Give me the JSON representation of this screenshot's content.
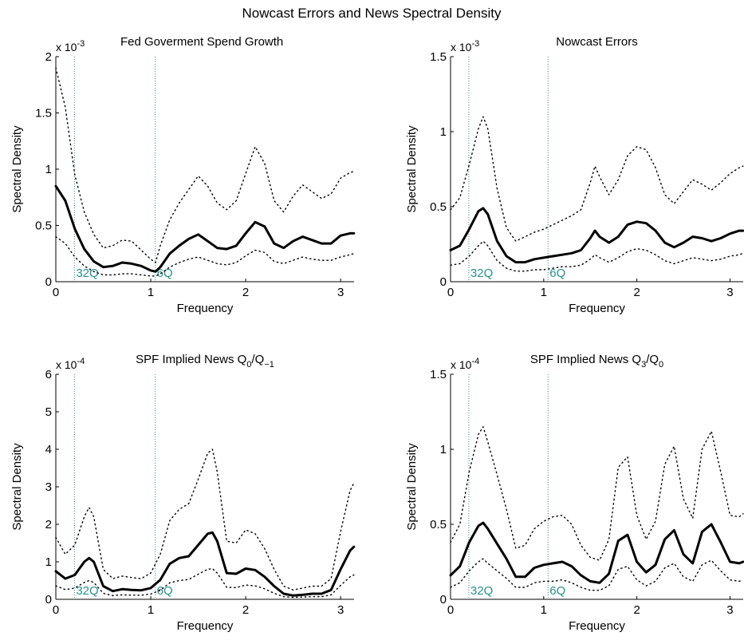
{
  "figure_title": "Nowcast Errors and News Spectral Density",
  "colors": {
    "band_label": "#2a8f8f",
    "guide_line": "#2a8f8f",
    "line": "#000000"
  },
  "chart_data": [
    {
      "type": "line",
      "title": "Fed Goverment Spend Growth",
      "xlabel": "Frequency",
      "ylabel": "Spectral Density",
      "scale_label": "x 10",
      "scale_exp": "-3",
      "xlim": [
        0,
        3.1416
      ],
      "ylim": [
        0,
        2
      ],
      "xticks": [
        0,
        1,
        2,
        3
      ],
      "xtick_labels": [
        "0",
        "1",
        "2",
        "3"
      ],
      "yticks": [
        0,
        0.5,
        1,
        1.5,
        2
      ],
      "ytick_labels": [
        "0",
        "0.5",
        "1",
        "1.5",
        "2"
      ],
      "band_lines": [
        0.196,
        1.047
      ],
      "band_labels": [
        "32Q",
        "6Q"
      ],
      "x": [
        0,
        0.1,
        0.2,
        0.3,
        0.4,
        0.5,
        0.6,
        0.7,
        0.8,
        0.9,
        1.0,
        1.05,
        1.1,
        1.2,
        1.3,
        1.4,
        1.5,
        1.6,
        1.7,
        1.8,
        1.9,
        2.0,
        2.1,
        2.2,
        2.3,
        2.4,
        2.5,
        2.6,
        2.7,
        2.8,
        2.9,
        3.0,
        3.1,
        3.14
      ],
      "series": [
        {
          "role": "estimate",
          "values": [
            0.85,
            0.72,
            0.47,
            0.29,
            0.18,
            0.13,
            0.14,
            0.17,
            0.16,
            0.14,
            0.1,
            0.09,
            0.13,
            0.25,
            0.32,
            0.38,
            0.42,
            0.36,
            0.3,
            0.29,
            0.32,
            0.43,
            0.53,
            0.49,
            0.34,
            0.3,
            0.36,
            0.4,
            0.37,
            0.34,
            0.34,
            0.41,
            0.43,
            0.43
          ]
        },
        {
          "role": "upper",
          "values": [
            1.9,
            1.55,
            0.95,
            0.62,
            0.42,
            0.3,
            0.32,
            0.37,
            0.36,
            0.28,
            0.2,
            0.17,
            0.32,
            0.55,
            0.7,
            0.82,
            0.94,
            0.85,
            0.7,
            0.64,
            0.72,
            0.96,
            1.2,
            1.05,
            0.72,
            0.62,
            0.76,
            0.86,
            0.8,
            0.74,
            0.78,
            0.92,
            0.97,
            0.98
          ]
        },
        {
          "role": "lower",
          "values": [
            0.4,
            0.34,
            0.22,
            0.14,
            0.09,
            0.06,
            0.06,
            0.07,
            0.07,
            0.06,
            0.05,
            0.05,
            0.07,
            0.13,
            0.17,
            0.2,
            0.22,
            0.19,
            0.16,
            0.15,
            0.17,
            0.23,
            0.28,
            0.26,
            0.18,
            0.16,
            0.19,
            0.22,
            0.2,
            0.19,
            0.19,
            0.22,
            0.24,
            0.25
          ]
        }
      ]
    },
    {
      "type": "line",
      "title": "Nowcast Errors",
      "xlabel": "Frequency",
      "ylabel": "Spectral Density",
      "scale_label": "x 10",
      "scale_exp": "-3",
      "xlim": [
        0,
        3.1416
      ],
      "ylim": [
        0,
        1.5
      ],
      "xticks": [
        0,
        1,
        2,
        3
      ],
      "xtick_labels": [
        "0",
        "1",
        "2",
        "3"
      ],
      "yticks": [
        0,
        0.5,
        1,
        1.5
      ],
      "ytick_labels": [
        "0",
        "0.5",
        "1",
        "1.5"
      ],
      "band_lines": [
        0.196,
        1.047
      ],
      "band_labels": [
        "32Q",
        "6Q"
      ],
      "x": [
        0,
        0.1,
        0.2,
        0.3,
        0.35,
        0.4,
        0.5,
        0.6,
        0.7,
        0.8,
        0.9,
        1.0,
        1.1,
        1.2,
        1.3,
        1.4,
        1.5,
        1.55,
        1.6,
        1.7,
        1.8,
        1.9,
        2.0,
        2.1,
        2.2,
        2.3,
        2.4,
        2.5,
        2.6,
        2.7,
        2.8,
        2.9,
        3.0,
        3.1,
        3.14
      ],
      "series": [
        {
          "role": "estimate",
          "values": [
            0.21,
            0.24,
            0.35,
            0.47,
            0.49,
            0.45,
            0.27,
            0.17,
            0.13,
            0.13,
            0.15,
            0.16,
            0.17,
            0.18,
            0.19,
            0.21,
            0.29,
            0.34,
            0.3,
            0.26,
            0.3,
            0.38,
            0.4,
            0.39,
            0.34,
            0.26,
            0.23,
            0.26,
            0.3,
            0.29,
            0.27,
            0.29,
            0.32,
            0.34,
            0.34
          ]
        },
        {
          "role": "upper",
          "values": [
            0.48,
            0.56,
            0.78,
            1.02,
            1.1,
            1.02,
            0.62,
            0.36,
            0.27,
            0.3,
            0.33,
            0.35,
            0.38,
            0.41,
            0.44,
            0.48,
            0.66,
            0.77,
            0.7,
            0.58,
            0.68,
            0.84,
            0.9,
            0.88,
            0.76,
            0.58,
            0.52,
            0.6,
            0.68,
            0.65,
            0.61,
            0.66,
            0.72,
            0.76,
            0.77
          ]
        },
        {
          "role": "lower",
          "values": [
            0.11,
            0.12,
            0.17,
            0.24,
            0.27,
            0.24,
            0.14,
            0.09,
            0.07,
            0.07,
            0.08,
            0.08,
            0.09,
            0.1,
            0.1,
            0.11,
            0.15,
            0.18,
            0.16,
            0.13,
            0.16,
            0.2,
            0.22,
            0.21,
            0.18,
            0.14,
            0.12,
            0.14,
            0.16,
            0.15,
            0.14,
            0.15,
            0.17,
            0.18,
            0.19
          ]
        }
      ]
    },
    {
      "type": "line",
      "title_main": "SPF Implied News Q",
      "title_sub1": "0",
      "title_mid": "/Q",
      "title_sub2": "−1",
      "xlabel": "Frequency",
      "ylabel": "Spectral Density",
      "scale_label": "x 10",
      "scale_exp": "-4",
      "xlim": [
        0,
        3.1416
      ],
      "ylim": [
        0,
        6
      ],
      "xticks": [
        0,
        1,
        2,
        3
      ],
      "xtick_labels": [
        "0",
        "1",
        "2",
        "3"
      ],
      "yticks": [
        0,
        1,
        2,
        3,
        4,
        5,
        6
      ],
      "ytick_labels": [
        "0",
        "1",
        "2",
        "3",
        "4",
        "5",
        "6"
      ],
      "band_lines": [
        0.196,
        1.047
      ],
      "band_labels": [
        "32Q",
        "6Q"
      ],
      "x": [
        0,
        0.1,
        0.2,
        0.3,
        0.35,
        0.4,
        0.5,
        0.6,
        0.7,
        0.8,
        0.9,
        1.0,
        1.1,
        1.2,
        1.3,
        1.4,
        1.5,
        1.6,
        1.65,
        1.7,
        1.8,
        1.9,
        2.0,
        2.1,
        2.2,
        2.3,
        2.4,
        2.5,
        2.6,
        2.7,
        2.8,
        2.9,
        3.0,
        3.1,
        3.14
      ],
      "series": [
        {
          "role": "estimate",
          "values": [
            0.75,
            0.55,
            0.65,
            1.0,
            1.1,
            1.0,
            0.35,
            0.22,
            0.27,
            0.25,
            0.24,
            0.3,
            0.52,
            0.95,
            1.1,
            1.15,
            1.45,
            1.75,
            1.78,
            1.55,
            0.7,
            0.68,
            0.82,
            0.78,
            0.6,
            0.35,
            0.15,
            0.1,
            0.12,
            0.15,
            0.15,
            0.25,
            0.8,
            1.3,
            1.4
          ]
        },
        {
          "role": "upper",
          "values": [
            1.65,
            1.2,
            1.45,
            2.2,
            2.45,
            2.2,
            0.8,
            0.55,
            0.62,
            0.58,
            0.55,
            0.7,
            1.2,
            2.1,
            2.4,
            2.55,
            3.2,
            3.9,
            4.0,
            3.4,
            1.55,
            1.5,
            1.85,
            1.75,
            1.35,
            0.8,
            0.35,
            0.25,
            0.3,
            0.35,
            0.35,
            0.55,
            1.8,
            2.9,
            3.1
          ]
        },
        {
          "role": "lower",
          "values": [
            0.36,
            0.26,
            0.3,
            0.45,
            0.5,
            0.45,
            0.16,
            0.1,
            0.12,
            0.11,
            0.11,
            0.14,
            0.24,
            0.44,
            0.5,
            0.53,
            0.67,
            0.8,
            0.82,
            0.7,
            0.32,
            0.31,
            0.38,
            0.36,
            0.28,
            0.16,
            0.07,
            0.05,
            0.06,
            0.07,
            0.07,
            0.12,
            0.37,
            0.6,
            0.65
          ]
        }
      ]
    },
    {
      "type": "line",
      "title_main": "SPF Implied News Q",
      "title_sub1": "3",
      "title_mid": "/Q",
      "title_sub2": "0",
      "xlabel": "Frequency",
      "ylabel": "Spectral Density",
      "scale_label": "x 10",
      "scale_exp": "-4",
      "xlim": [
        0,
        3.1416
      ],
      "ylim": [
        0,
        1.5
      ],
      "xticks": [
        0,
        1,
        2,
        3
      ],
      "xtick_labels": [
        "0",
        "1",
        "2",
        "3"
      ],
      "yticks": [
        0,
        0.5,
        1,
        1.5
      ],
      "ytick_labels": [
        "0",
        "0.5",
        "1",
        "1.5"
      ],
      "band_lines": [
        0.196,
        1.047
      ],
      "band_labels": [
        "32Q",
        "6Q"
      ],
      "x": [
        0,
        0.1,
        0.2,
        0.3,
        0.35,
        0.4,
        0.5,
        0.6,
        0.7,
        0.8,
        0.9,
        1.0,
        1.1,
        1.2,
        1.3,
        1.4,
        1.5,
        1.6,
        1.7,
        1.8,
        1.9,
        2.0,
        2.1,
        2.2,
        2.3,
        2.4,
        2.5,
        2.6,
        2.7,
        2.8,
        2.9,
        3.0,
        3.1,
        3.14
      ],
      "series": [
        {
          "role": "estimate",
          "values": [
            0.16,
            0.22,
            0.38,
            0.49,
            0.51,
            0.47,
            0.37,
            0.27,
            0.15,
            0.15,
            0.21,
            0.23,
            0.24,
            0.25,
            0.22,
            0.16,
            0.12,
            0.11,
            0.17,
            0.39,
            0.43,
            0.25,
            0.18,
            0.23,
            0.4,
            0.46,
            0.3,
            0.24,
            0.45,
            0.5,
            0.38,
            0.25,
            0.24,
            0.25
          ]
        },
        {
          "role": "upper",
          "values": [
            0.38,
            0.5,
            0.85,
            1.1,
            1.15,
            1.05,
            0.83,
            0.6,
            0.34,
            0.36,
            0.47,
            0.52,
            0.55,
            0.56,
            0.5,
            0.36,
            0.28,
            0.26,
            0.4,
            0.88,
            0.95,
            0.56,
            0.4,
            0.52,
            0.9,
            1.02,
            0.67,
            0.54,
            1.0,
            1.12,
            0.85,
            0.56,
            0.55,
            0.57
          ]
        },
        {
          "role": "lower",
          "values": [
            0.08,
            0.11,
            0.19,
            0.25,
            0.27,
            0.24,
            0.19,
            0.14,
            0.08,
            0.08,
            0.11,
            0.12,
            0.12,
            0.13,
            0.11,
            0.08,
            0.06,
            0.06,
            0.09,
            0.2,
            0.22,
            0.13,
            0.09,
            0.12,
            0.21,
            0.24,
            0.15,
            0.12,
            0.23,
            0.26,
            0.19,
            0.13,
            0.12,
            0.13
          ]
        }
      ]
    }
  ]
}
